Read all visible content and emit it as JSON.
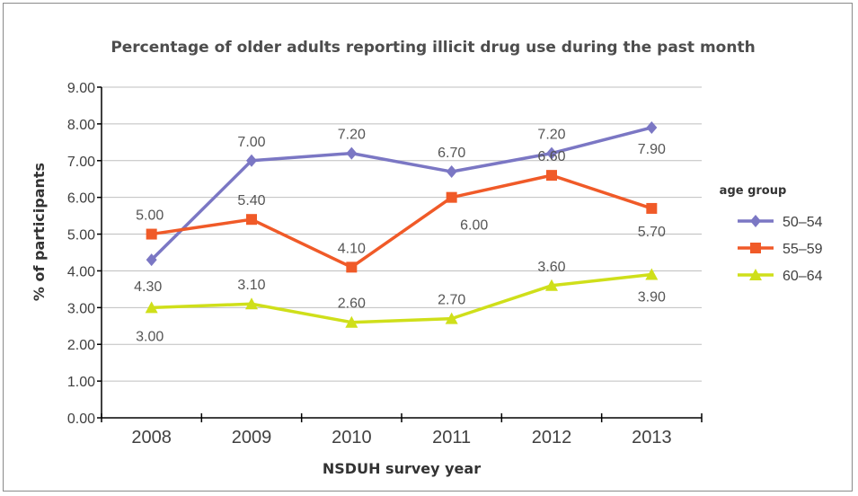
{
  "chart_data": {
    "type": "line",
    "title": "Percentage of older adults reporting illicit drug use during the past month",
    "xlabel": "NSDUH survey year",
    "ylabel": "% of participants",
    "categories": [
      "2008",
      "2009",
      "2010",
      "2011",
      "2012",
      "2013"
    ],
    "ylim": [
      0,
      9
    ],
    "yticks": [
      "0.00",
      "1.00",
      "2.00",
      "3.00",
      "4.00",
      "5.00",
      "6.00",
      "7.00",
      "8.00",
      "9.00"
    ],
    "grid": true,
    "legend": {
      "title": "age group",
      "placement": "right"
    },
    "series": [
      {
        "name": "50–54",
        "values": [
          4.3,
          7.0,
          7.2,
          6.7,
          7.2,
          7.9
        ],
        "labels": [
          "4.30",
          "7.00",
          "7.20",
          "6.70",
          "7.20",
          "7.90"
        ],
        "color": "#7b77c4",
        "marker": "diamond"
      },
      {
        "name": "55–59",
        "values": [
          5.0,
          5.4,
          4.1,
          6.0,
          6.6,
          5.7
        ],
        "labels": [
          "5.00",
          "5.40",
          "4.10",
          "6.00",
          "6.60",
          "5.70"
        ],
        "color": "#f05a28",
        "marker": "square"
      },
      {
        "name": "60–64",
        "values": [
          3.0,
          3.1,
          2.6,
          2.7,
          3.6,
          3.9
        ],
        "labels": [
          "3.00",
          "3.10",
          "2.60",
          "2.70",
          "3.60",
          "3.90"
        ],
        "color": "#cfdf1a",
        "marker": "triangle"
      }
    ]
  }
}
